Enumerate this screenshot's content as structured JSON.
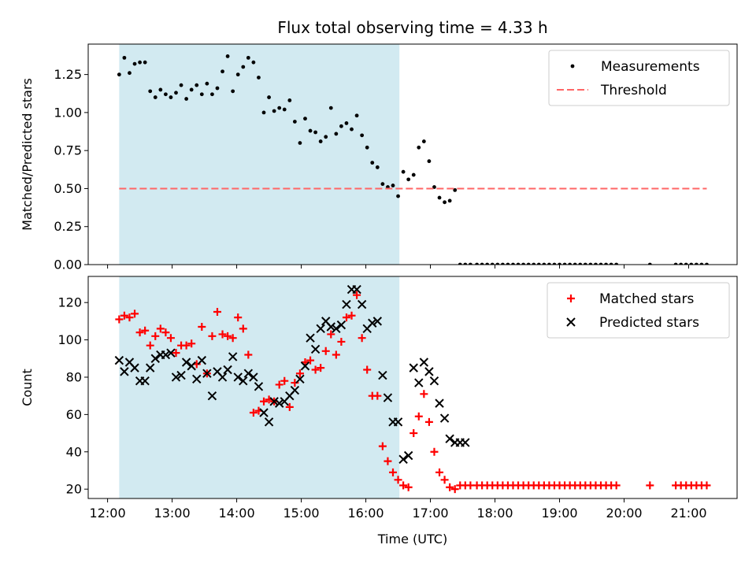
{
  "chart_data": {
    "type": "scatter",
    "title": "Flux total observing time = 4.33 h",
    "xlabel": "Time (UTC)",
    "x_tick_labels": [
      "12:00",
      "13:00",
      "14:00",
      "15:00",
      "16:00",
      "17:00",
      "18:00",
      "19:00",
      "20:00",
      "21:00"
    ],
    "x_tick_values": [
      12,
      13,
      14,
      15,
      16,
      17,
      18,
      19,
      20,
      21
    ],
    "xlim": [
      11.7,
      21.75
    ],
    "shaded_region": {
      "x_start": 12.18,
      "x_end": 16.52,
      "color": "#add8e6"
    },
    "panels": [
      {
        "ylabel": "Matched/Predicted stars",
        "ylim": [
          0,
          1.45
        ],
        "y_ticks": [
          0.0,
          0.25,
          0.5,
          0.75,
          1.0,
          1.25
        ],
        "y_tick_labels": [
          "0.00",
          "0.25",
          "0.50",
          "0.75",
          "1.00",
          "1.25"
        ],
        "legend": {
          "position": "upper right",
          "entries": [
            "Measurements",
            "Threshold"
          ]
        },
        "series": [
          {
            "name": "Measurements",
            "marker": "dot",
            "color": "#000000",
            "x": [
              12.18,
              12.26,
              12.34,
              12.42,
              12.5,
              12.58,
              12.66,
              12.74,
              12.82,
              12.9,
              12.98,
              13.06,
              13.14,
              13.22,
              13.3,
              13.38,
              13.46,
              13.54,
              13.62,
              13.7,
              13.78,
              13.86,
              13.94,
              14.02,
              14.1,
              14.18,
              14.26,
              14.34,
              14.42,
              14.5,
              14.58,
              14.66,
              14.74,
              14.82,
              14.9,
              14.98,
              15.06,
              15.14,
              15.22,
              15.3,
              15.38,
              15.46,
              15.54,
              15.62,
              15.7,
              15.78,
              15.86,
              15.94,
              16.02,
              16.1,
              16.18,
              16.26,
              16.34,
              16.42,
              16.5,
              16.58,
              16.66,
              16.74,
              16.82,
              16.9,
              16.98,
              17.06,
              17.14,
              17.22,
              17.3,
              17.38,
              17.46,
              17.54,
              17.62,
              17.72,
              17.8,
              17.88,
              17.96,
              18.04,
              18.12,
              18.2,
              18.28,
              18.36,
              18.44,
              18.52,
              18.6,
              18.68,
              18.76,
              18.84,
              18.92,
              19.0,
              19.08,
              19.16,
              19.24,
              19.32,
              19.4,
              19.48,
              19.56,
              19.64,
              19.72,
              19.8,
              19.88,
              20.4,
              20.8,
              20.88,
              20.96,
              21.04,
              21.12,
              21.2,
              21.28
            ],
            "y": [
              1.25,
              1.36,
              1.26,
              1.32,
              1.33,
              1.33,
              1.14,
              1.1,
              1.15,
              1.12,
              1.1,
              1.13,
              1.18,
              1.09,
              1.15,
              1.18,
              1.12,
              1.19,
              1.12,
              1.16,
              1.27,
              1.37,
              1.14,
              1.25,
              1.3,
              1.36,
              1.33,
              1.23,
              1.0,
              1.1,
              1.01,
              1.03,
              1.02,
              1.08,
              0.94,
              0.8,
              0.96,
              0.88,
              0.87,
              0.81,
              0.84,
              1.03,
              0.86,
              0.91,
              0.93,
              0.89,
              0.98,
              0.85,
              0.77,
              0.67,
              0.64,
              0.53,
              0.51,
              0.52,
              0.45,
              0.61,
              0.56,
              0.59,
              0.77,
              0.81,
              0.68,
              0.51,
              0.44,
              0.41,
              0.42,
              0.49,
              0.0,
              0.0,
              0.0,
              0.0,
              0.0,
              0.0,
              0.0,
              0.0,
              0.0,
              0.0,
              0.0,
              0.0,
              0.0,
              0.0,
              0.0,
              0.0,
              0.0,
              0.0,
              0.0,
              0.0,
              0.0,
              0.0,
              0.0,
              0.0,
              0.0,
              0.0,
              0.0,
              0.0,
              0.0,
              0.0,
              0.0,
              0.0,
              0.0,
              0.0,
              0.0,
              0.0,
              0.0,
              0.0,
              0.0
            ]
          },
          {
            "name": "Threshold",
            "marker": "dashed-line",
            "color": "#ff6666",
            "x": [
              12.18,
              21.28
            ],
            "y": [
              0.5,
              0.5
            ]
          }
        ]
      },
      {
        "ylabel": "Count",
        "ylim": [
          15,
          134
        ],
        "y_ticks": [
          20,
          40,
          60,
          80,
          100,
          120
        ],
        "y_tick_labels": [
          "20",
          "40",
          "60",
          "80",
          "100",
          "120"
        ],
        "legend": {
          "position": "upper right",
          "entries": [
            "Matched stars",
            "Predicted stars"
          ]
        },
        "series": [
          {
            "name": "Matched stars",
            "marker": "plus",
            "color": "#ff0000",
            "x": [
              12.18,
              12.26,
              12.34,
              12.42,
              12.5,
              12.58,
              12.66,
              12.74,
              12.82,
              12.9,
              12.98,
              13.06,
              13.14,
              13.22,
              13.3,
              13.38,
              13.46,
              13.54,
              13.62,
              13.7,
              13.78,
              13.86,
              13.94,
              14.02,
              14.1,
              14.18,
              14.26,
              14.34,
              14.42,
              14.5,
              14.58,
              14.66,
              14.74,
              14.82,
              14.9,
              14.98,
              15.06,
              15.14,
              15.22,
              15.3,
              15.38,
              15.46,
              15.54,
              15.62,
              15.7,
              15.78,
              15.86,
              15.94,
              16.02,
              16.1,
              16.18,
              16.26,
              16.34,
              16.42,
              16.5,
              16.58,
              16.66,
              16.74,
              16.82,
              16.9,
              16.98,
              17.06,
              17.14,
              17.22,
              17.3,
              17.38,
              17.46,
              17.54,
              17.62,
              17.72,
              17.8,
              17.88,
              17.96,
              18.04,
              18.12,
              18.2,
              18.28,
              18.36,
              18.44,
              18.52,
              18.6,
              18.68,
              18.76,
              18.84,
              18.92,
              19.0,
              19.08,
              19.16,
              19.24,
              19.32,
              19.4,
              19.48,
              19.56,
              19.64,
              19.72,
              19.8,
              19.88,
              20.4,
              20.8,
              20.88,
              20.96,
              21.04,
              21.12,
              21.2,
              21.28
            ],
            "y": [
              111,
              113,
              112,
              114,
              104,
              105,
              97,
              102,
              106,
              104,
              101,
              93,
              97,
              97,
              98,
              87,
              107,
              82,
              102,
              115,
              103,
              102,
              101,
              112,
              106,
              92,
              61,
              62,
              67,
              68,
              67,
              76,
              78,
              64,
              77,
              82,
              88,
              89,
              84,
              85,
              94,
              103,
              92,
              99,
              112,
              113,
              124,
              101,
              84,
              70,
              70,
              43,
              35,
              29,
              25,
              22,
              21,
              50,
              59,
              71,
              56,
              40,
              29,
              25,
              21,
              20,
              22,
              22,
              22,
              22,
              22,
              22,
              22,
              22,
              22,
              22,
              22,
              22,
              22,
              22,
              22,
              22,
              22,
              22,
              22,
              22,
              22,
              22,
              22,
              22,
              22,
              22,
              22,
              22,
              22,
              22,
              22,
              22,
              22,
              22,
              22,
              22,
              22,
              22,
              22
            ]
          },
          {
            "name": "Predicted stars",
            "marker": "cross",
            "color": "#000000",
            "x": [
              12.18,
              12.26,
              12.34,
              12.42,
              12.5,
              12.58,
              12.66,
              12.74,
              12.82,
              12.9,
              12.98,
              13.06,
              13.14,
              13.22,
              13.3,
              13.38,
              13.46,
              13.54,
              13.62,
              13.7,
              13.78,
              13.86,
              13.94,
              14.02,
              14.1,
              14.18,
              14.26,
              14.34,
              14.42,
              14.5,
              14.58,
              14.66,
              14.74,
              14.82,
              14.9,
              14.98,
              15.06,
              15.14,
              15.22,
              15.3,
              15.38,
              15.46,
              15.54,
              15.62,
              15.7,
              15.78,
              15.86,
              15.94,
              16.02,
              16.1,
              16.18,
              16.26,
              16.34,
              16.42,
              16.5,
              16.58,
              16.66,
              16.74,
              16.82,
              16.9,
              16.98,
              17.06,
              17.14,
              17.22,
              17.3,
              17.38,
              17.46,
              17.54
            ],
            "y": [
              89,
              83,
              88,
              85,
              78,
              78,
              85,
              90,
              92,
              92,
              93,
              80,
              81,
              88,
              86,
              79,
              89,
              82,
              70,
              83,
              80,
              84,
              91,
              80,
              78,
              82,
              80,
              75,
              61,
              56,
              67,
              66,
              67,
              70,
              73,
              79,
              86,
              101,
              95,
              106,
              110,
              107,
              106,
              108,
              119,
              127,
              127,
              119,
              106,
              109,
              110,
              81,
              69,
              56,
              56,
              36,
              38,
              85,
              77,
              88,
              83,
              78,
              66,
              58,
              47,
              45,
              45,
              45
            ]
          }
        ]
      }
    ]
  }
}
